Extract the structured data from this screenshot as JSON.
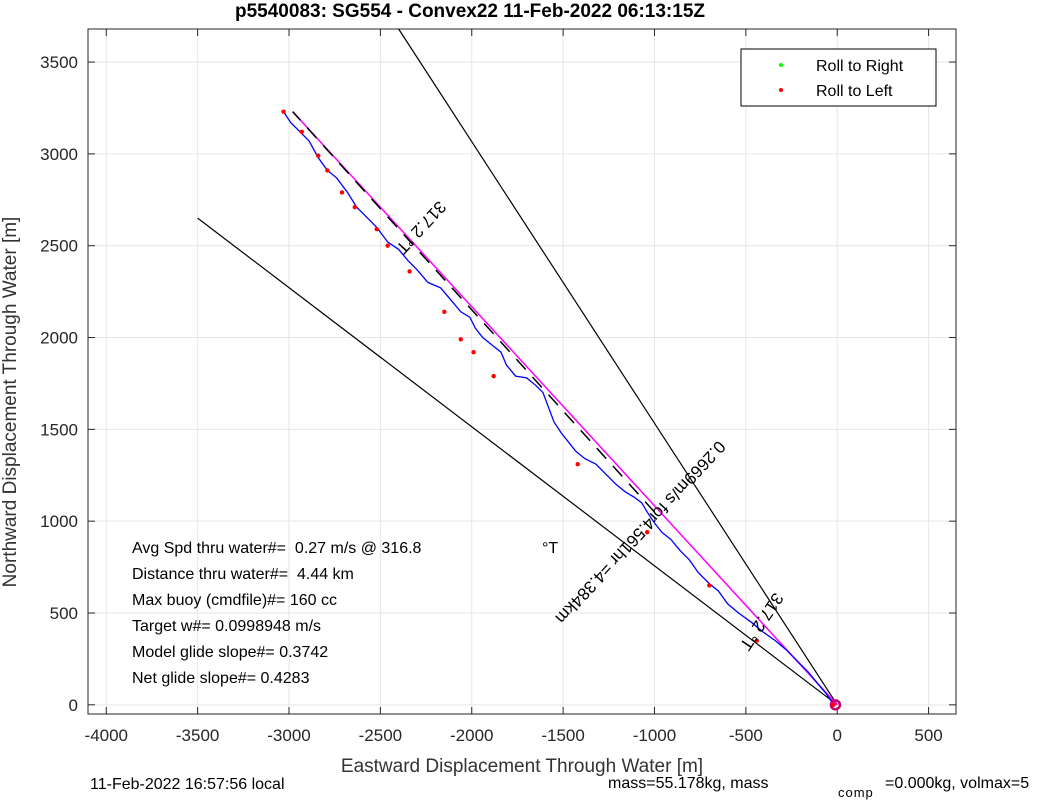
{
  "chart_data": {
    "type": "line",
    "title": "p5540083: SG554 - Convex22 11-Feb-2022 06:13:15Z",
    "xlabel": "Eastward Displacement Through Water [m]",
    "ylabel": "Northward Displacement Through Water [m]",
    "xlim": [
      -4100,
      650
    ],
    "ylim": [
      -50,
      3680
    ],
    "xticks": [
      -4000,
      -3500,
      -3000,
      -2500,
      -2000,
      -1500,
      -1000,
      -500,
      0,
      500
    ],
    "yticks": [
      0,
      500,
      1000,
      1500,
      2000,
      2500,
      3000,
      3500
    ],
    "grid": true,
    "legend": {
      "placement": "top-right",
      "entries": [
        {
          "label": "Roll to Right",
          "color": "#00ff00"
        },
        {
          "label": "Roll to Left",
          "color": "#ff0000"
        }
      ]
    },
    "track": {
      "color": "#0000ff",
      "x": [
        -20,
        -60,
        -110,
        -160,
        -220,
        -280,
        -340,
        -410,
        -470,
        -540,
        -600,
        -650,
        -700,
        -760,
        -810,
        -860,
        -910,
        -960,
        -1000,
        -1040,
        -1070,
        -1110,
        -1160,
        -1210,
        -1270,
        -1320,
        -1380,
        -1430,
        -1470,
        -1510,
        -1550,
        -1580,
        -1610,
        -1650,
        -1700,
        -1760,
        -1810,
        -1840,
        -1890,
        -1940,
        -1980,
        -2010,
        -2060,
        -2110,
        -2170,
        -2240,
        -2300,
        -2350,
        -2400,
        -2460,
        -2520,
        -2580,
        -2630,
        -2680,
        -2740,
        -2790,
        -2840,
        -2890,
        -2940,
        -2990,
        -3030
      ],
      "y": [
        0,
        60,
        120,
        180,
        240,
        300,
        350,
        400,
        450,
        500,
        550,
        620,
        660,
        720,
        790,
        840,
        900,
        940,
        990,
        1050,
        1100,
        1130,
        1160,
        1200,
        1260,
        1310,
        1340,
        1380,
        1430,
        1480,
        1540,
        1620,
        1700,
        1740,
        1780,
        1790,
        1850,
        1920,
        1960,
        2000,
        2050,
        2110,
        2140,
        2200,
        2270,
        2300,
        2370,
        2420,
        2480,
        2520,
        2600,
        2660,
        2710,
        2790,
        2870,
        2910,
        2980,
        3070,
        3120,
        3170,
        3230
      ]
    },
    "dive_points": {
      "color": "#ff0000",
      "x": [
        -20,
        -440,
        -700,
        -1040,
        -1420,
        -1880,
        -1990,
        -2060,
        -2150,
        -2340,
        -2460,
        -2520,
        -2640,
        -2710,
        -2790,
        -2840,
        -2930,
        -3030
      ],
      "y": [
        0,
        350,
        650,
        940,
        1310,
        1790,
        1920,
        1990,
        2140,
        2360,
        2500,
        2590,
        2710,
        2790,
        2910,
        2990,
        3120,
        3230
      ]
    },
    "model_line": {
      "color": "#ff00ff",
      "x": [
        0,
        -2980
      ],
      "y": [
        0,
        3230
      ]
    },
    "dashed_line": {
      "color": "#000000",
      "x": [
        -1000,
        -2980
      ],
      "y": [
        1050,
        3230
      ]
    },
    "heading_lines": {
      "color": "#000000",
      "lines": [
        {
          "x": [
            0,
            -2400
          ],
          "y": [
            0,
            3680
          ]
        },
        {
          "x": [
            0,
            -3500
          ],
          "y": [
            0,
            2650
          ]
        }
      ]
    },
    "origin_marker": {
      "x": -10,
      "y": 0,
      "color": "#cc0066"
    },
    "annotations": {
      "heading_upper": "317.2 °T",
      "heading_lower": "317.2 °T",
      "speed_line": "0.2669m/s for4.561hr =4.384km"
    },
    "stats": [
      "Avg Spd thru water#=  0.27 m/s @ 316.8",
      "°T",
      "Distance thru water#=  4.44 km",
      "Max buoy (cmdfile)#= 160 cc",
      "Target w#= 0.0998948 m/s",
      "Model glide slope#= 0.3742",
      "Net glide slope#= 0.4283"
    ],
    "footer": {
      "left": "11-Feb-2022 16:57:56 local",
      "mass": "mass=55.178kg, mass",
      "mass_sub": "comp",
      "mass_tail": "=0.000kg, volmax=5"
    }
  }
}
